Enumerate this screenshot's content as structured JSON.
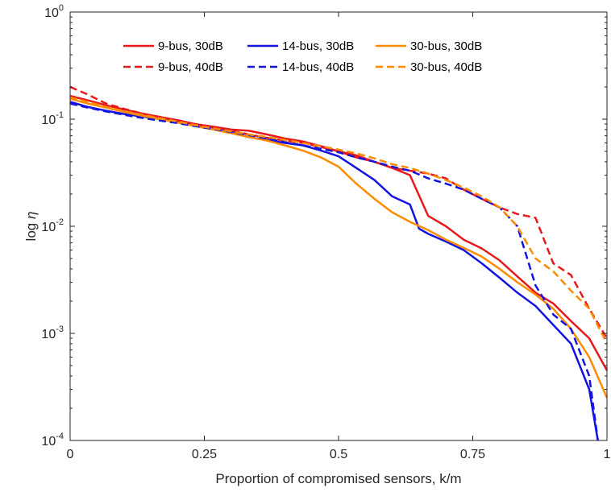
{
  "chart_data": {
    "type": "line",
    "xlabel": "Proportion of compromised sensors, k/m",
    "ylabel": {
      "prefix": "log",
      "symbol": "η"
    },
    "xlim": [
      0,
      1
    ],
    "ylim": [
      0.0001,
      1
    ],
    "yscale": "log",
    "grid": false,
    "legend_position": "top",
    "x_ticks": [
      {
        "value": 0,
        "label": "0"
      },
      {
        "value": 0.25,
        "label": "0.25"
      },
      {
        "value": 0.5,
        "label": "0.5"
      },
      {
        "value": 0.75,
        "label": "0.75"
      },
      {
        "value": 1,
        "label": "1"
      }
    ],
    "y_ticks": [
      {
        "value": 1,
        "base": "10",
        "exp": "0"
      },
      {
        "value": 0.1,
        "base": "10",
        "exp": "-1"
      },
      {
        "value": 0.01,
        "base": "10",
        "exp": "-2"
      },
      {
        "value": 0.001,
        "base": "10",
        "exp": "-3"
      },
      {
        "value": 0.0001,
        "base": "10",
        "exp": "-4"
      }
    ],
    "series": [
      {
        "name": "9-bus, 30dB",
        "color": "#e8191c",
        "dash": "solid",
        "x": [
          0,
          0.033,
          0.067,
          0.1,
          0.133,
          0.167,
          0.2,
          0.233,
          0.267,
          0.3,
          0.333,
          0.367,
          0.4,
          0.433,
          0.467,
          0.5,
          0.533,
          0.567,
          0.6,
          0.633,
          0.667,
          0.7,
          0.733,
          0.767,
          0.8,
          0.833,
          0.867,
          0.9,
          0.933,
          0.967,
          1
        ],
        "y": [
          0.165,
          0.15,
          0.135,
          0.123,
          0.113,
          0.105,
          0.098,
          0.09,
          0.085,
          0.08,
          0.078,
          0.072,
          0.066,
          0.062,
          0.056,
          0.05,
          0.046,
          0.04,
          0.035,
          0.03,
          0.0125,
          0.01,
          0.0075,
          0.0062,
          0.0048,
          0.0034,
          0.0024,
          0.0019,
          0.0013,
          0.0009,
          0.00045
        ]
      },
      {
        "name": "14-bus, 30dB",
        "color": "#1414e0",
        "dash": "solid",
        "x": [
          0,
          0.033,
          0.067,
          0.1,
          0.133,
          0.167,
          0.2,
          0.233,
          0.267,
          0.3,
          0.333,
          0.367,
          0.4,
          0.433,
          0.467,
          0.5,
          0.533,
          0.567,
          0.6,
          0.633,
          0.65,
          0.667,
          0.7,
          0.733,
          0.767,
          0.8,
          0.833,
          0.867,
          0.9,
          0.933,
          0.967,
          0.983
        ],
        "y": [
          0.145,
          0.13,
          0.12,
          0.112,
          0.106,
          0.1,
          0.094,
          0.087,
          0.082,
          0.075,
          0.068,
          0.064,
          0.06,
          0.057,
          0.051,
          0.045,
          0.035,
          0.027,
          0.019,
          0.016,
          0.0095,
          0.0085,
          0.0072,
          0.006,
          0.0045,
          0.0033,
          0.0024,
          0.0018,
          0.0012,
          0.0008,
          0.0003,
          0.0001
        ]
      },
      {
        "name": "30-bus, 30dB",
        "color": "#ff8c00",
        "dash": "solid",
        "x": [
          0,
          0.033,
          0.067,
          0.1,
          0.133,
          0.167,
          0.2,
          0.233,
          0.267,
          0.3,
          0.333,
          0.367,
          0.4,
          0.433,
          0.467,
          0.5,
          0.533,
          0.567,
          0.6,
          0.633,
          0.667,
          0.7,
          0.733,
          0.767,
          0.8,
          0.833,
          0.867,
          0.9,
          0.933,
          0.967,
          1
        ],
        "y": [
          0.155,
          0.14,
          0.128,
          0.117,
          0.108,
          0.1,
          0.093,
          0.086,
          0.08,
          0.074,
          0.068,
          0.063,
          0.057,
          0.051,
          0.044,
          0.036,
          0.025,
          0.018,
          0.0135,
          0.011,
          0.0092,
          0.0075,
          0.0063,
          0.0052,
          0.004,
          0.003,
          0.0023,
          0.0017,
          0.0011,
          0.0006,
          0.00025
        ]
      },
      {
        "name": "9-bus, 40dB",
        "color": "#e8191c",
        "dash": "dashed",
        "x": [
          0,
          0.033,
          0.067,
          0.1,
          0.133,
          0.167,
          0.2,
          0.233,
          0.267,
          0.3,
          0.333,
          0.367,
          0.4,
          0.433,
          0.467,
          0.5,
          0.533,
          0.567,
          0.6,
          0.633,
          0.667,
          0.7,
          0.733,
          0.767,
          0.8,
          0.833,
          0.867,
          0.9,
          0.933,
          0.967,
          1
        ],
        "y": [
          0.2,
          0.17,
          0.14,
          0.125,
          0.113,
          0.105,
          0.097,
          0.09,
          0.084,
          0.078,
          0.072,
          0.067,
          0.063,
          0.06,
          0.055,
          0.05,
          0.044,
          0.04,
          0.035,
          0.033,
          0.031,
          0.028,
          0.022,
          0.018,
          0.015,
          0.013,
          0.012,
          0.0045,
          0.0035,
          0.0017,
          0.0009
        ]
      },
      {
        "name": "14-bus, 40dB",
        "color": "#1414e0",
        "dash": "dashed",
        "x": [
          0,
          0.033,
          0.067,
          0.1,
          0.133,
          0.167,
          0.2,
          0.233,
          0.267,
          0.3,
          0.333,
          0.367,
          0.4,
          0.433,
          0.467,
          0.5,
          0.533,
          0.567,
          0.6,
          0.633,
          0.667,
          0.7,
          0.733,
          0.767,
          0.8,
          0.833,
          0.867,
          0.9,
          0.933,
          0.967,
          0.983
        ],
        "y": [
          0.14,
          0.128,
          0.118,
          0.11,
          0.103,
          0.097,
          0.092,
          0.086,
          0.081,
          0.076,
          0.071,
          0.066,
          0.061,
          0.057,
          0.053,
          0.049,
          0.044,
          0.04,
          0.036,
          0.033,
          0.028,
          0.025,
          0.022,
          0.018,
          0.015,
          0.01,
          0.0028,
          0.0015,
          0.0011,
          0.0004,
          0.0001
        ]
      },
      {
        "name": "30-bus, 40dB",
        "color": "#ff8c00",
        "dash": "dashed",
        "x": [
          0,
          0.033,
          0.067,
          0.1,
          0.133,
          0.167,
          0.2,
          0.233,
          0.267,
          0.3,
          0.333,
          0.367,
          0.4,
          0.433,
          0.467,
          0.5,
          0.533,
          0.567,
          0.6,
          0.633,
          0.667,
          0.7,
          0.733,
          0.767,
          0.8,
          0.833,
          0.867,
          0.9,
          0.933,
          0.967,
          1
        ],
        "y": [
          0.16,
          0.145,
          0.13,
          0.119,
          0.11,
          0.102,
          0.095,
          0.088,
          0.082,
          0.077,
          0.072,
          0.068,
          0.064,
          0.06,
          0.056,
          0.052,
          0.048,
          0.043,
          0.038,
          0.035,
          0.031,
          0.027,
          0.023,
          0.019,
          0.015,
          0.01,
          0.005,
          0.0038,
          0.0025,
          0.0017,
          0.0008
        ]
      }
    ]
  }
}
